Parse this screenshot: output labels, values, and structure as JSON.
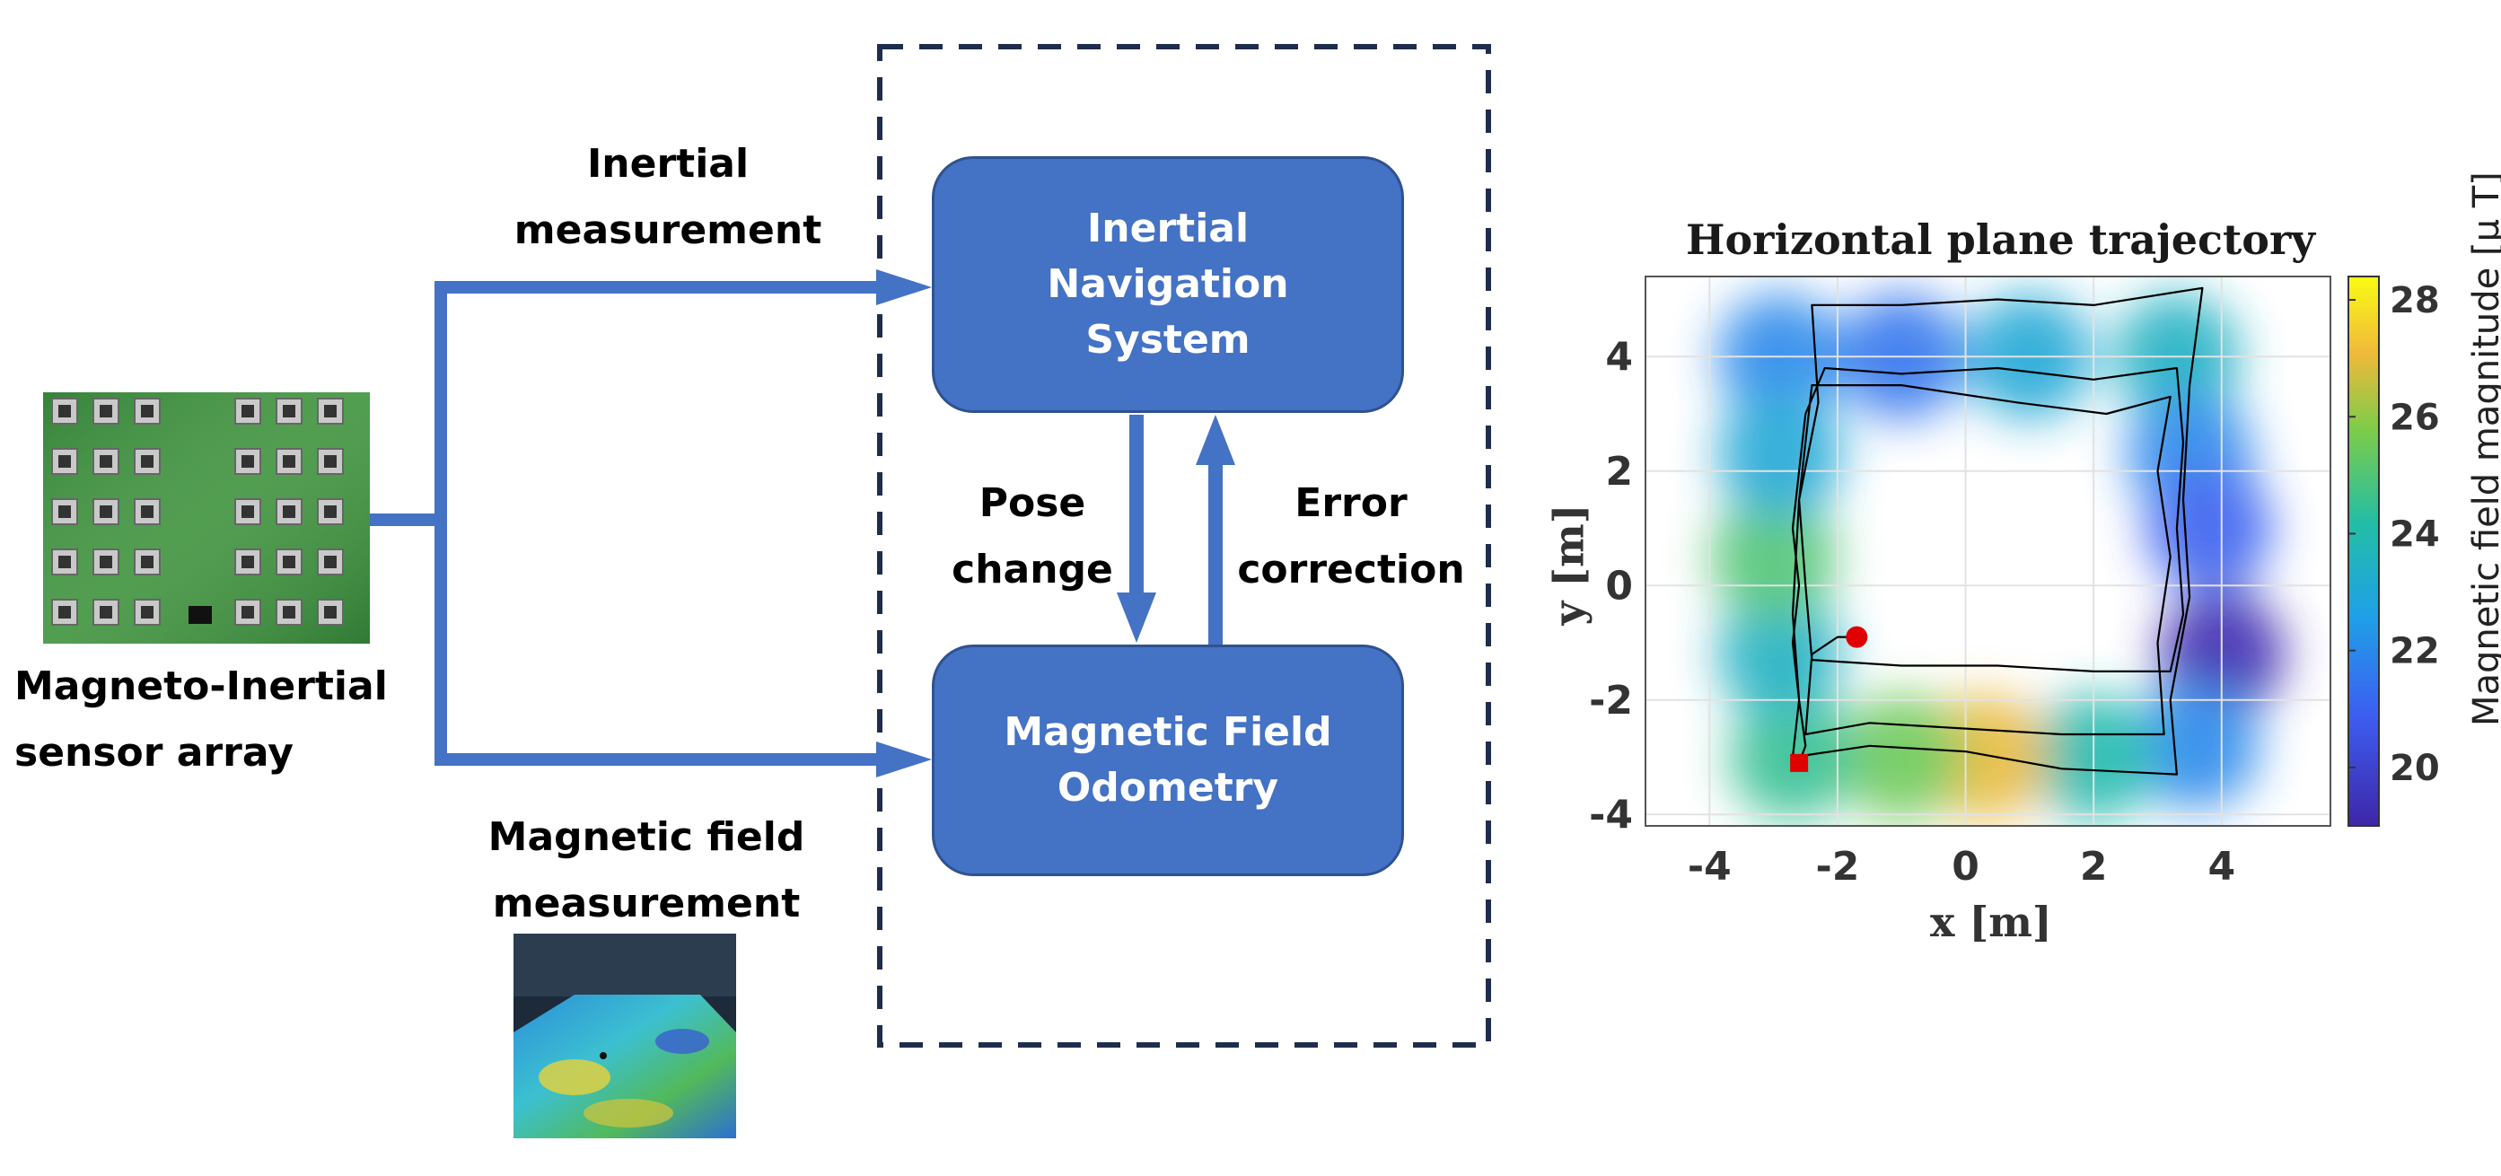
{
  "diagram": {
    "inertial_measurement_label": "Inertial\nmeasurement",
    "magnetic_field_measurement_label": "Magnetic field\nmeasurement",
    "sensor_array_label": "Magneto-Inertial\nsensor array",
    "ins_box": "Inertial\nNavigation\nSystem",
    "mfo_box": "Magnetic Field\nOdometry",
    "pose_change_label": "Pose\nchange",
    "error_correction_label": "Error\ncorrection",
    "arrow_color": "#4472c4",
    "box_color": "#4472c4",
    "dashed_border_color": "#1f2d4d"
  },
  "chart_data": {
    "type": "scatter",
    "title": "Horizontal plane trajectory",
    "xlabel": "x [m]",
    "ylabel": "y [m]",
    "xlim": [
      -5,
      5.7
    ],
    "ylim": [
      -4.2,
      5.4
    ],
    "xticks": [
      "-4",
      "-2",
      "0",
      "2",
      "4"
    ],
    "yticks": [
      "4",
      "2",
      "0",
      "-2",
      "-4"
    ],
    "grid": true,
    "colorbar_label": "Magnetic field magnitude [μ T]",
    "colorbar_ticks": [
      "28",
      "26",
      "24",
      "22",
      "20"
    ],
    "colorbar_range": [
      19,
      28.4
    ],
    "start_marker": {
      "x": -2.6,
      "y": -3.1,
      "shape": "square",
      "color": "#e00000"
    },
    "end_marker": {
      "x": -1.7,
      "y": -0.9,
      "shape": "circle",
      "color": "#e00000"
    },
    "trajectory": [
      [
        -2.6,
        -3.1
      ],
      [
        -2.5,
        -2.8
      ],
      [
        -2.6,
        -2.0
      ],
      [
        -2.7,
        -1.0
      ],
      [
        -2.6,
        0.0
      ],
      [
        -2.7,
        1.0
      ],
      [
        -2.6,
        2.0
      ],
      [
        -2.5,
        3.0
      ],
      [
        -2.2,
        3.8
      ],
      [
        -1.0,
        3.7
      ],
      [
        0.5,
        3.8
      ],
      [
        2.0,
        3.6
      ],
      [
        3.3,
        3.8
      ],
      [
        3.4,
        2.5
      ],
      [
        3.3,
        1.0
      ],
      [
        3.4,
        -0.5
      ],
      [
        3.2,
        -1.5
      ],
      [
        2.0,
        -1.5
      ],
      [
        0.5,
        -1.4
      ],
      [
        -1.0,
        -1.4
      ],
      [
        -2.4,
        -1.3
      ],
      [
        -2.5,
        0.0
      ],
      [
        -2.6,
        1.5
      ],
      [
        -2.3,
        3.2
      ],
      [
        -2.4,
        4.9
      ],
      [
        -1.0,
        4.9
      ],
      [
        0.5,
        5.0
      ],
      [
        2.0,
        4.9
      ],
      [
        3.7,
        5.2
      ],
      [
        3.5,
        3.5
      ],
      [
        3.4,
        1.5
      ],
      [
        3.5,
        -0.2
      ],
      [
        3.2,
        -2.0
      ],
      [
        3.3,
        -3.3
      ],
      [
        1.5,
        -3.2
      ],
      [
        0.0,
        -2.9
      ],
      [
        -1.5,
        -2.8
      ],
      [
        -2.7,
        -3.0
      ],
      [
        -2.6,
        -2.0
      ],
      [
        -2.7,
        -0.5
      ],
      [
        -2.6,
        1.5
      ],
      [
        -2.4,
        3.5
      ],
      [
        -1.0,
        3.5
      ],
      [
        0.8,
        3.2
      ],
      [
        2.2,
        3.0
      ],
      [
        3.2,
        3.3
      ],
      [
        3.0,
        2.0
      ],
      [
        3.2,
        0.5
      ],
      [
        3.0,
        -1.0
      ],
      [
        3.1,
        -2.6
      ],
      [
        1.5,
        -2.6
      ],
      [
        0.0,
        -2.5
      ],
      [
        -1.5,
        -2.4
      ],
      [
        -2.5,
        -2.6
      ],
      [
        -2.4,
        -1.2
      ],
      [
        -2.0,
        -0.9
      ],
      [
        -1.7,
        -0.9
      ]
    ],
    "field_samples": [
      {
        "x": -2.9,
        "y": 4.0,
        "v": 22.0
      },
      {
        "x": -1.0,
        "y": 4.0,
        "v": 21.5
      },
      {
        "x": 1.0,
        "y": 4.0,
        "v": 23.0
      },
      {
        "x": 3.3,
        "y": 4.0,
        "v": 23.5
      },
      {
        "x": 3.5,
        "y": 2.3,
        "v": 22.0
      },
      {
        "x": 3.8,
        "y": 1.0,
        "v": 21.0
      },
      {
        "x": 4.0,
        "y": -1.2,
        "v": 19.2
      },
      {
        "x": 3.6,
        "y": -2.8,
        "v": 22.0
      },
      {
        "x": 2.0,
        "y": -3.0,
        "v": 24.0
      },
      {
        "x": 0.3,
        "y": -3.0,
        "v": 27.0
      },
      {
        "x": -1.0,
        "y": -3.0,
        "v": 25.5
      },
      {
        "x": -2.7,
        "y": -3.0,
        "v": 24.5
      },
      {
        "x": -2.9,
        "y": -1.2,
        "v": 23.5
      },
      {
        "x": -3.0,
        "y": 0.5,
        "v": 25.0
      },
      {
        "x": -2.9,
        "y": 2.3,
        "v": 23.0
      }
    ]
  }
}
